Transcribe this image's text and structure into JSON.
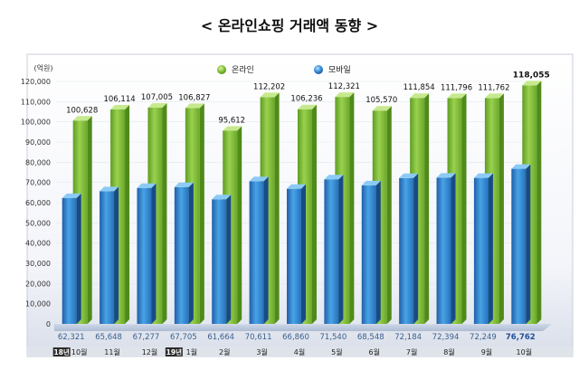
{
  "chart_data": {
    "type": "bar",
    "title": "< 온라인쇼핑 거래액 동향 >",
    "unit_label": "(억원)",
    "ylim": [
      0,
      120000
    ],
    "yticks": [
      0,
      10000,
      20000,
      30000,
      40000,
      50000,
      60000,
      70000,
      80000,
      90000,
      100000,
      110000,
      120000
    ],
    "ytick_labels": [
      "0",
      "10,000",
      "20,000",
      "30,000",
      "40,000",
      "50,000",
      "60,000",
      "70,000",
      "80,000",
      "90,000",
      "100,000",
      "110,000",
      "120,000"
    ],
    "legend_position": "top-center",
    "categories": [
      "10월",
      "11월",
      "12월",
      "1월",
      "2월",
      "3월",
      "4월",
      "5월",
      "6월",
      "7월",
      "8월",
      "9월",
      "10월"
    ],
    "year_badges": [
      {
        "index": 0,
        "label": "18년"
      },
      {
        "index": 3,
        "label": "19년"
      }
    ],
    "series": [
      {
        "name": "온라인",
        "color": "#7cbf3c",
        "values": [
          100628,
          106114,
          107005,
          106827,
          95612,
          112202,
          106236,
          112321,
          105570,
          111854,
          111796,
          111762,
          118055
        ],
        "labels": [
          "100,628",
          "106,114",
          "107,005",
          "106,827",
          "95,612",
          "112,202",
          "106,236",
          "112,321",
          "105,570",
          "111,854",
          "111,796",
          "111,762",
          "118,055"
        ]
      },
      {
        "name": "모바일",
        "color": "#2f86cf",
        "values": [
          62321,
          65648,
          67277,
          67705,
          61664,
          70611,
          66860,
          71540,
          68548,
          72184,
          72394,
          72249,
          76762
        ],
        "labels": [
          "62,321",
          "65,648",
          "67,277",
          "67,705",
          "61,664",
          "70,611",
          "66,860",
          "71,540",
          "68,548",
          "72,184",
          "72,394",
          "72,249",
          "76,762"
        ]
      }
    ],
    "highlight_last": true
  }
}
